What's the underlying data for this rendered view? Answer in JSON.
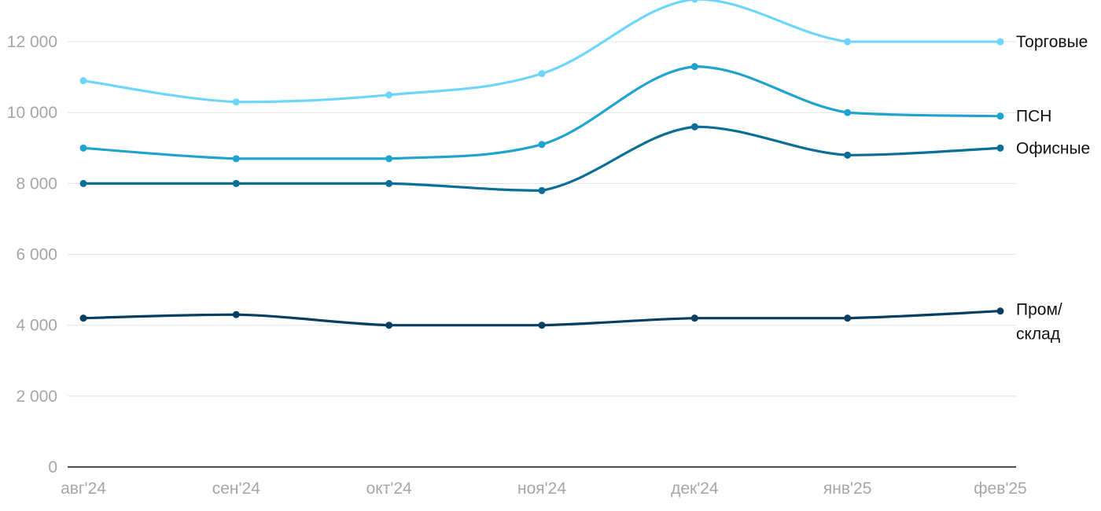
{
  "chart_data": {
    "type": "line",
    "categories": [
      "авг'24",
      "сен'24",
      "окт'24",
      "ноя'24",
      "дек'24",
      "янв'25",
      "фев'25"
    ],
    "ylim": [
      0,
      13000
    ],
    "yticks": [
      0,
      2000,
      4000,
      6000,
      8000,
      10000,
      12000
    ],
    "ytick_labels": [
      "0",
      "2 000",
      "4 000",
      "6 000",
      "8 000",
      "10 000",
      "12 000"
    ],
    "grid": true,
    "legend_placement": "right, inline labels at line ends",
    "series": [
      {
        "key": "torgovye",
        "label_lines": [
          "Торговые"
        ],
        "color": "#6fd6fb",
        "values": [
          10900,
          10300,
          10500,
          11100,
          13200,
          12000,
          12000
        ]
      },
      {
        "key": "psn",
        "label_lines": [
          "ПСН"
        ],
        "color": "#21a3cf",
        "values": [
          9000,
          8700,
          8700,
          9100,
          11300,
          10000,
          9900
        ]
      },
      {
        "key": "ofisnye",
        "label_lines": [
          "Офисные"
        ],
        "color": "#0b6e96",
        "values": [
          8000,
          8000,
          8000,
          7800,
          9600,
          8800,
          9000
        ]
      },
      {
        "key": "prom-sklad",
        "label_lines": [
          "Пром/",
          "склад"
        ],
        "color": "#063f61",
        "values": [
          4200,
          4300,
          4000,
          4000,
          4200,
          4200,
          4400
        ]
      }
    ]
  }
}
